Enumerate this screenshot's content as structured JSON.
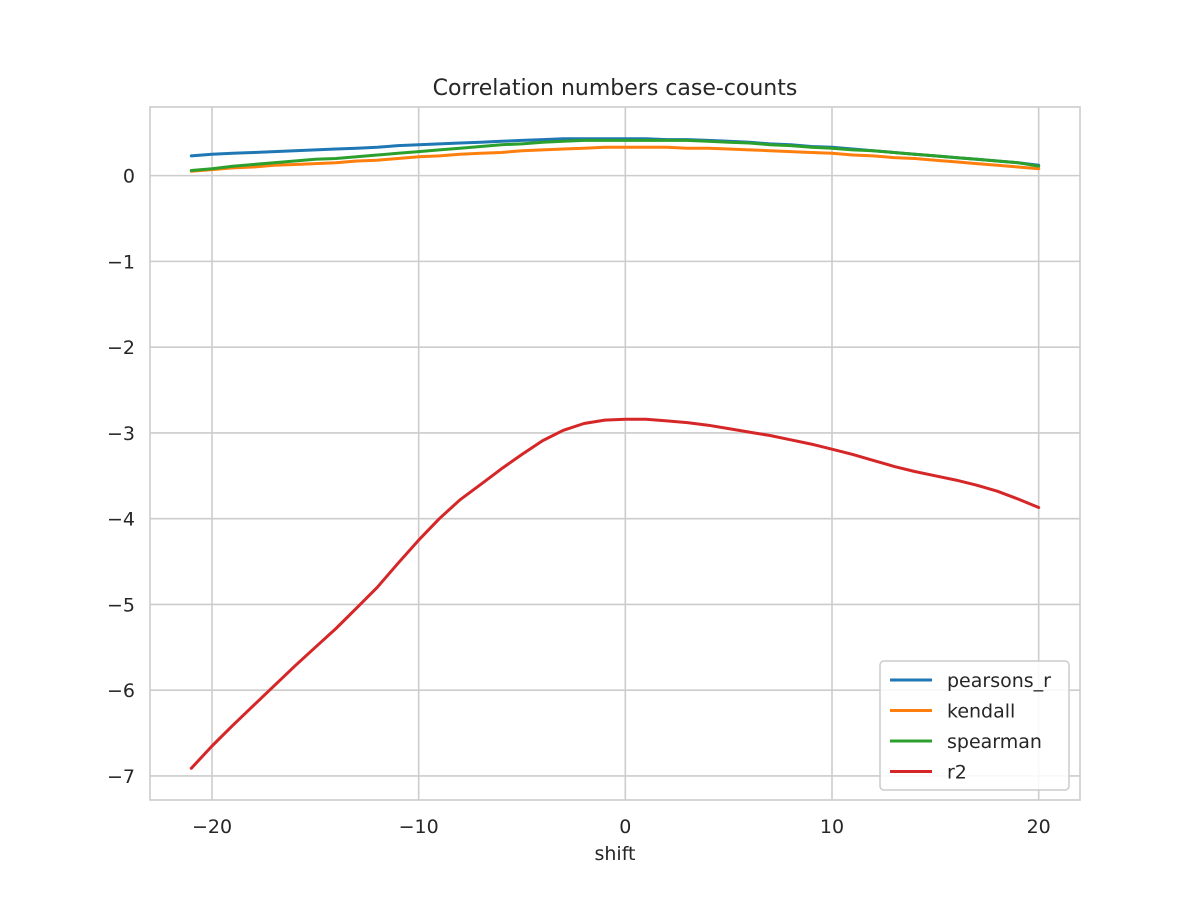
{
  "chart_data": {
    "type": "line",
    "title": "Correlation numbers case-counts",
    "xlabel": "shift",
    "ylabel": "",
    "xlim": [
      -23,
      22
    ],
    "ylim": [
      -7.28,
      0.8
    ],
    "xticks": [
      -20,
      -10,
      0,
      10,
      20
    ],
    "xtick_labels": [
      "−20",
      "−10",
      "0",
      "10",
      "20"
    ],
    "yticks": [
      0,
      -1,
      -2,
      -3,
      -4,
      -5,
      -6,
      -7
    ],
    "ytick_labels": [
      "0",
      "−1",
      "−2",
      "−3",
      "−4",
      "−5",
      "−6",
      "−7"
    ],
    "grid": true,
    "legend_position": "lower-right",
    "x": [
      -21,
      -20,
      -19,
      -18,
      -17,
      -16,
      -15,
      -14,
      -13,
      -12,
      -11,
      -10,
      -9,
      -8,
      -7,
      -6,
      -5,
      -4,
      -3,
      -2,
      -1,
      0,
      1,
      2,
      3,
      4,
      5,
      6,
      7,
      8,
      9,
      10,
      11,
      12,
      13,
      14,
      15,
      16,
      17,
      18,
      19,
      20
    ],
    "series": [
      {
        "name": "pearsons_r",
        "color": "#1f77b4",
        "values": [
          0.23,
          0.25,
          0.26,
          0.27,
          0.28,
          0.29,
          0.3,
          0.31,
          0.32,
          0.33,
          0.35,
          0.36,
          0.37,
          0.38,
          0.39,
          0.4,
          0.41,
          0.42,
          0.43,
          0.43,
          0.43,
          0.43,
          0.43,
          0.42,
          0.42,
          0.41,
          0.4,
          0.39,
          0.37,
          0.36,
          0.34,
          0.33,
          0.31,
          0.29,
          0.27,
          0.25,
          0.23,
          0.21,
          0.19,
          0.17,
          0.15,
          0.12
        ]
      },
      {
        "name": "kendall",
        "color": "#ff7f0e",
        "values": [
          0.05,
          0.07,
          0.09,
          0.1,
          0.12,
          0.13,
          0.14,
          0.15,
          0.17,
          0.18,
          0.2,
          0.22,
          0.23,
          0.25,
          0.26,
          0.27,
          0.29,
          0.3,
          0.31,
          0.32,
          0.33,
          0.33,
          0.33,
          0.33,
          0.32,
          0.32,
          0.31,
          0.3,
          0.29,
          0.28,
          0.27,
          0.26,
          0.24,
          0.23,
          0.21,
          0.2,
          0.18,
          0.16,
          0.14,
          0.12,
          0.1,
          0.08
        ]
      },
      {
        "name": "spearman",
        "color": "#2ca02c",
        "values": [
          0.06,
          0.08,
          0.11,
          0.13,
          0.15,
          0.17,
          0.19,
          0.2,
          0.22,
          0.24,
          0.26,
          0.28,
          0.3,
          0.32,
          0.34,
          0.36,
          0.37,
          0.39,
          0.4,
          0.41,
          0.41,
          0.41,
          0.41,
          0.41,
          0.41,
          0.4,
          0.39,
          0.38,
          0.36,
          0.35,
          0.33,
          0.32,
          0.3,
          0.29,
          0.27,
          0.25,
          0.23,
          0.21,
          0.19,
          0.17,
          0.15,
          0.11
        ]
      },
      {
        "name": "r2",
        "color": "#d62728",
        "values": [
          -6.91,
          -6.65,
          -6.41,
          -6.18,
          -5.95,
          -5.72,
          -5.5,
          -5.28,
          -5.04,
          -4.8,
          -4.52,
          -4.25,
          -4.0,
          -3.78,
          -3.6,
          -3.42,
          -3.25,
          -3.09,
          -2.97,
          -2.89,
          -2.85,
          -2.84,
          -2.84,
          -2.86,
          -2.88,
          -2.91,
          -2.95,
          -2.99,
          -3.03,
          -3.08,
          -3.13,
          -3.19,
          -3.25,
          -3.32,
          -3.39,
          -3.45,
          -3.5,
          -3.55,
          -3.61,
          -3.68,
          -3.77,
          -3.87
        ]
      }
    ]
  }
}
